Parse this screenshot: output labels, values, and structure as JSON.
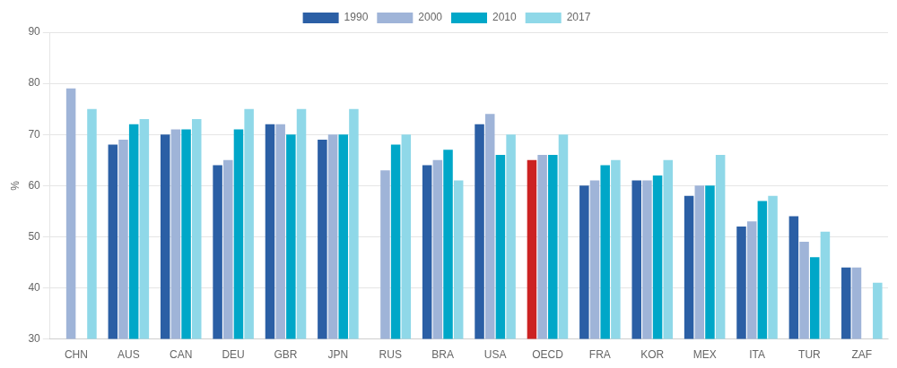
{
  "chart_data": {
    "type": "bar",
    "ylabel": "%",
    "categories": [
      "CHN",
      "AUS",
      "CAN",
      "DEU",
      "GBR",
      "JPN",
      "RUS",
      "BRA",
      "USA",
      "OECD",
      "FRA",
      "KOR",
      "MEX",
      "ITA",
      "TUR",
      "ZAF"
    ],
    "series": [
      {
        "name": "1990",
        "color": "#2B5FA5",
        "colors": [
          "#2B5FA5",
          "#2B5FA5",
          "#2B5FA5",
          "#2B5FA5",
          "#2B5FA5",
          "#2B5FA5",
          "#2B5FA5",
          "#2B5FA5",
          "#2B5FA5",
          "#CC2222",
          "#2B5FA5",
          "#2B5FA5",
          "#2B5FA5",
          "#2B5FA5",
          "#2B5FA5",
          "#2B5FA5"
        ],
        "values": [
          null,
          68,
          70,
          64,
          72,
          69,
          null,
          64,
          72,
          65,
          60,
          61,
          58,
          52,
          54,
          44
        ]
      },
      {
        "name": "2000",
        "color": "#9FB4D8",
        "values": [
          79,
          69,
          71,
          65,
          72,
          70,
          63,
          65,
          74,
          66,
          61,
          61,
          60,
          53,
          49,
          44
        ]
      },
      {
        "name": "2010",
        "color": "#00A7C8",
        "values": [
          null,
          72,
          71,
          71,
          70,
          70,
          68,
          67,
          66,
          66,
          64,
          62,
          60,
          57,
          46,
          null
        ]
      },
      {
        "name": "2017",
        "color": "#8FD8E8",
        "values": [
          75,
          73,
          73,
          75,
          75,
          75,
          70,
          61,
          70,
          70,
          65,
          65,
          66,
          58,
          51,
          41
        ]
      }
    ],
    "ylim": [
      30,
      90
    ],
    "yticks": [
      30,
      40,
      50,
      60,
      70,
      80,
      90
    ],
    "grid": true,
    "legend": "top"
  }
}
